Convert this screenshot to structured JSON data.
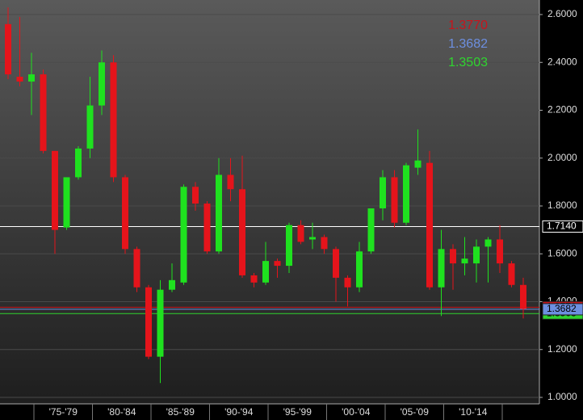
{
  "chart_data": {
    "type": "candlestick",
    "categories": [
      null,
      null,
      null,
      null,
      null,
      null,
      null,
      null,
      null,
      null,
      null,
      null,
      null,
      null,
      null,
      null,
      null,
      null,
      null,
      null,
      null,
      null,
      null,
      null,
      null,
      null,
      null,
      null,
      null,
      null,
      null,
      null,
      null,
      null,
      null,
      null,
      null,
      null,
      null,
      null,
      null,
      null,
      null,
      null,
      null
    ],
    "open": [
      2.56,
      2.34,
      2.32,
      2.35,
      2.03,
      1.71,
      1.92,
      2.04,
      2.22,
      2.4,
      1.92,
      1.62,
      1.46,
      1.17,
      1.45,
      1.48,
      1.88,
      1.81,
      1.61,
      1.93,
      1.87,
      1.51,
      1.48,
      1.57,
      1.55,
      1.72,
      1.66,
      1.67,
      1.62,
      1.5,
      1.46,
      1.61,
      1.79,
      1.92,
      1.73,
      1.96,
      1.98,
      1.46,
      1.62,
      1.56,
      1.56,
      1.63,
      1.66,
      1.56,
      1.47
    ],
    "high": [
      2.63,
      2.59,
      2.44,
      2.37,
      2.03,
      1.92,
      2.05,
      2.34,
      2.45,
      2.43,
      1.93,
      1.63,
      1.47,
      1.49,
      1.56,
      1.89,
      1.9,
      1.82,
      2.0,
      2.0,
      2.01,
      1.52,
      1.65,
      1.58,
      1.73,
      1.74,
      1.73,
      1.68,
      1.63,
      1.51,
      1.65,
      1.79,
      1.95,
      1.95,
      1.98,
      2.12,
      2.03,
      1.7,
      1.64,
      1.67,
      1.66,
      1.67,
      1.72,
      1.57,
      1.5
    ],
    "low": [
      2.33,
      2.3,
      2.18,
      2.02,
      1.6,
      1.7,
      1.91,
      2.0,
      2.18,
      1.9,
      1.6,
      1.44,
      1.16,
      1.06,
      1.44,
      1.47,
      1.78,
      1.6,
      1.6,
      1.82,
      1.5,
      1.46,
      1.47,
      1.5,
      1.52,
      1.64,
      1.62,
      1.6,
      1.4,
      1.38,
      1.44,
      1.6,
      1.74,
      1.71,
      1.72,
      1.93,
      1.45,
      1.34,
      1.45,
      1.51,
      1.48,
      1.48,
      1.52,
      1.46,
      1.33
    ],
    "close": [
      2.35,
      2.32,
      2.35,
      2.03,
      1.7,
      1.92,
      2.04,
      2.22,
      2.4,
      1.92,
      1.62,
      1.46,
      1.17,
      1.45,
      1.49,
      1.88,
      1.81,
      1.61,
      1.93,
      1.87,
      1.51,
      1.48,
      1.57,
      1.55,
      1.72,
      1.65,
      1.67,
      1.62,
      1.5,
      1.46,
      1.61,
      1.79,
      1.92,
      1.73,
      1.97,
      1.99,
      1.46,
      1.62,
      1.56,
      1.58,
      1.63,
      1.66,
      1.56,
      1.47,
      1.37
    ],
    "up_color": "#1fe11f",
    "down_color": "#e5141b",
    "periods": [
      "'75-'79",
      "'80-'84",
      "'85-'89",
      "'90-'94",
      "'95-'99",
      "'00-'04",
      "'05-'09",
      "'10-'14"
    ],
    "ylim": [
      1.0,
      2.6
    ],
    "yticks": [
      {
        "value": 1.0,
        "label": "1.0000"
      },
      {
        "value": 1.2,
        "label": "1.2000"
      },
      {
        "value": 1.4,
        "label": "1.4000"
      },
      {
        "value": 1.6,
        "label": "1.6000"
      },
      {
        "value": 1.8,
        "label": "1.8000"
      },
      {
        "value": 2.0,
        "label": "2.0000"
      },
      {
        "value": 2.2,
        "label": "2.2000"
      },
      {
        "value": 2.4,
        "label": "2.4000"
      },
      {
        "value": 2.6,
        "label": "2.6000"
      }
    ],
    "grid": true,
    "levels": [
      {
        "value": 1.714,
        "value_label": "1.7140",
        "color": "#ffffff"
      },
      {
        "value": 1.377,
        "value_label": "1.3770",
        "color": "#c8141c"
      },
      {
        "value": 1.3682,
        "value_label": "1.3682",
        "color": "#6d8fe0"
      },
      {
        "value": 1.3503,
        "value_label": "1.3503",
        "color": "#2fd52f"
      }
    ],
    "legend": [
      {
        "value_label": "1.3770",
        "color": "#c8141c"
      },
      {
        "value_label": "1.3682",
        "color": "#6d8fe0"
      },
      {
        "value_label": "1.3503",
        "color": "#2fd52f"
      }
    ]
  }
}
